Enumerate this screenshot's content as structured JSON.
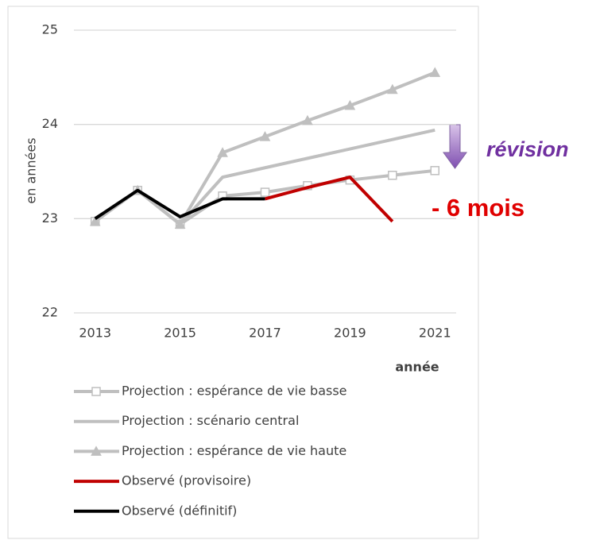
{
  "chart_data": {
    "type": "line",
    "y_label": "en années",
    "x_label": "année",
    "annotations": [
      "révision",
      "- 6 mois"
    ],
    "x": [
      2013,
      2014,
      2015,
      2016,
      2017,
      2018,
      2019,
      2020,
      2021
    ],
    "xlim": [
      2012.5,
      2021.5
    ],
    "xticks": [
      2013,
      2015,
      2017,
      2019,
      2021
    ],
    "ylim": [
      22,
      25
    ],
    "yticks": [
      22,
      23,
      24,
      25
    ],
    "grid": true,
    "series": [
      {
        "name": "Projection : espérance de vie basse",
        "color": "#bfbfbf",
        "marker": "square",
        "values": [
          22.97,
          23.3,
          22.94,
          23.24,
          23.28,
          23.35,
          23.41,
          23.46,
          23.51
        ]
      },
      {
        "name": "Projection : scénario central",
        "color": "#bfbfbf",
        "marker": "none",
        "values": [
          22.97,
          23.3,
          22.94,
          23.44,
          23.54,
          23.64,
          23.74,
          23.84,
          23.94
        ]
      },
      {
        "name": "Projection : espérance de vie haute",
        "color": "#bfbfbf",
        "marker": "triangle",
        "values": [
          22.97,
          23.3,
          22.94,
          23.7,
          23.87,
          24.04,
          24.2,
          24.37,
          24.55
        ]
      },
      {
        "name": "Observé (provisoire)",
        "color": "#c00000",
        "marker": "none",
        "values": [
          null,
          null,
          null,
          null,
          23.21,
          23.33,
          23.44,
          22.97,
          null
        ]
      },
      {
        "name": "Observé (définitif)",
        "color": "#000000",
        "marker": "none",
        "values": [
          23.0,
          23.3,
          23.02,
          23.21,
          23.21,
          null,
          null,
          null,
          null
        ]
      }
    ]
  }
}
